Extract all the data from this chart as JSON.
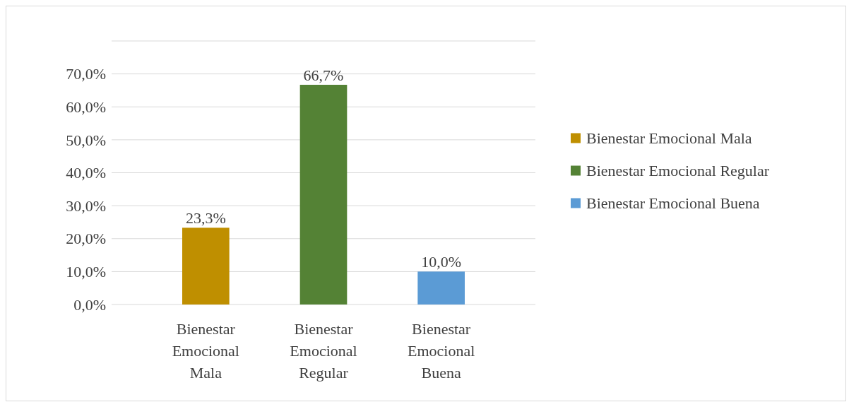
{
  "chart_data": {
    "type": "bar",
    "categories": [
      "Bienestar Emocional Mala",
      "Bienestar Emocional Regular",
      "Bienestar Emocional Buena"
    ],
    "series": [
      {
        "name": "Bienestar Emocional Mala",
        "color": "#bf8f00",
        "values": [
          23.3,
          null,
          null
        ],
        "value_labels": [
          "23,3%",
          null,
          null
        ]
      },
      {
        "name": "Bienestar Emocional Regular",
        "color": "#548235",
        "values": [
          null,
          66.7,
          null
        ],
        "value_labels": [
          null,
          "66,7%",
          null
        ]
      },
      {
        "name": "Bienestar Emocional Buena",
        "color": "#5b9bd5",
        "values": [
          null,
          null,
          10.0
        ],
        "value_labels": [
          null,
          null,
          "10,0%"
        ]
      }
    ],
    "ylim": [
      0,
      80
    ],
    "yticks": [
      {
        "value": 0,
        "label": "0,0%"
      },
      {
        "value": 10,
        "label": "10,0%"
      },
      {
        "value": 20,
        "label": "20,0%"
      },
      {
        "value": 30,
        "label": "30,0%"
      },
      {
        "value": 40,
        "label": "40,0%"
      },
      {
        "value": 50,
        "label": "50,0%"
      },
      {
        "value": 60,
        "label": "60,0%"
      },
      {
        "value": 70,
        "label": "70,0%"
      },
      {
        "value": 80,
        "label": null
      }
    ],
    "grid": "y",
    "legend": "right"
  }
}
